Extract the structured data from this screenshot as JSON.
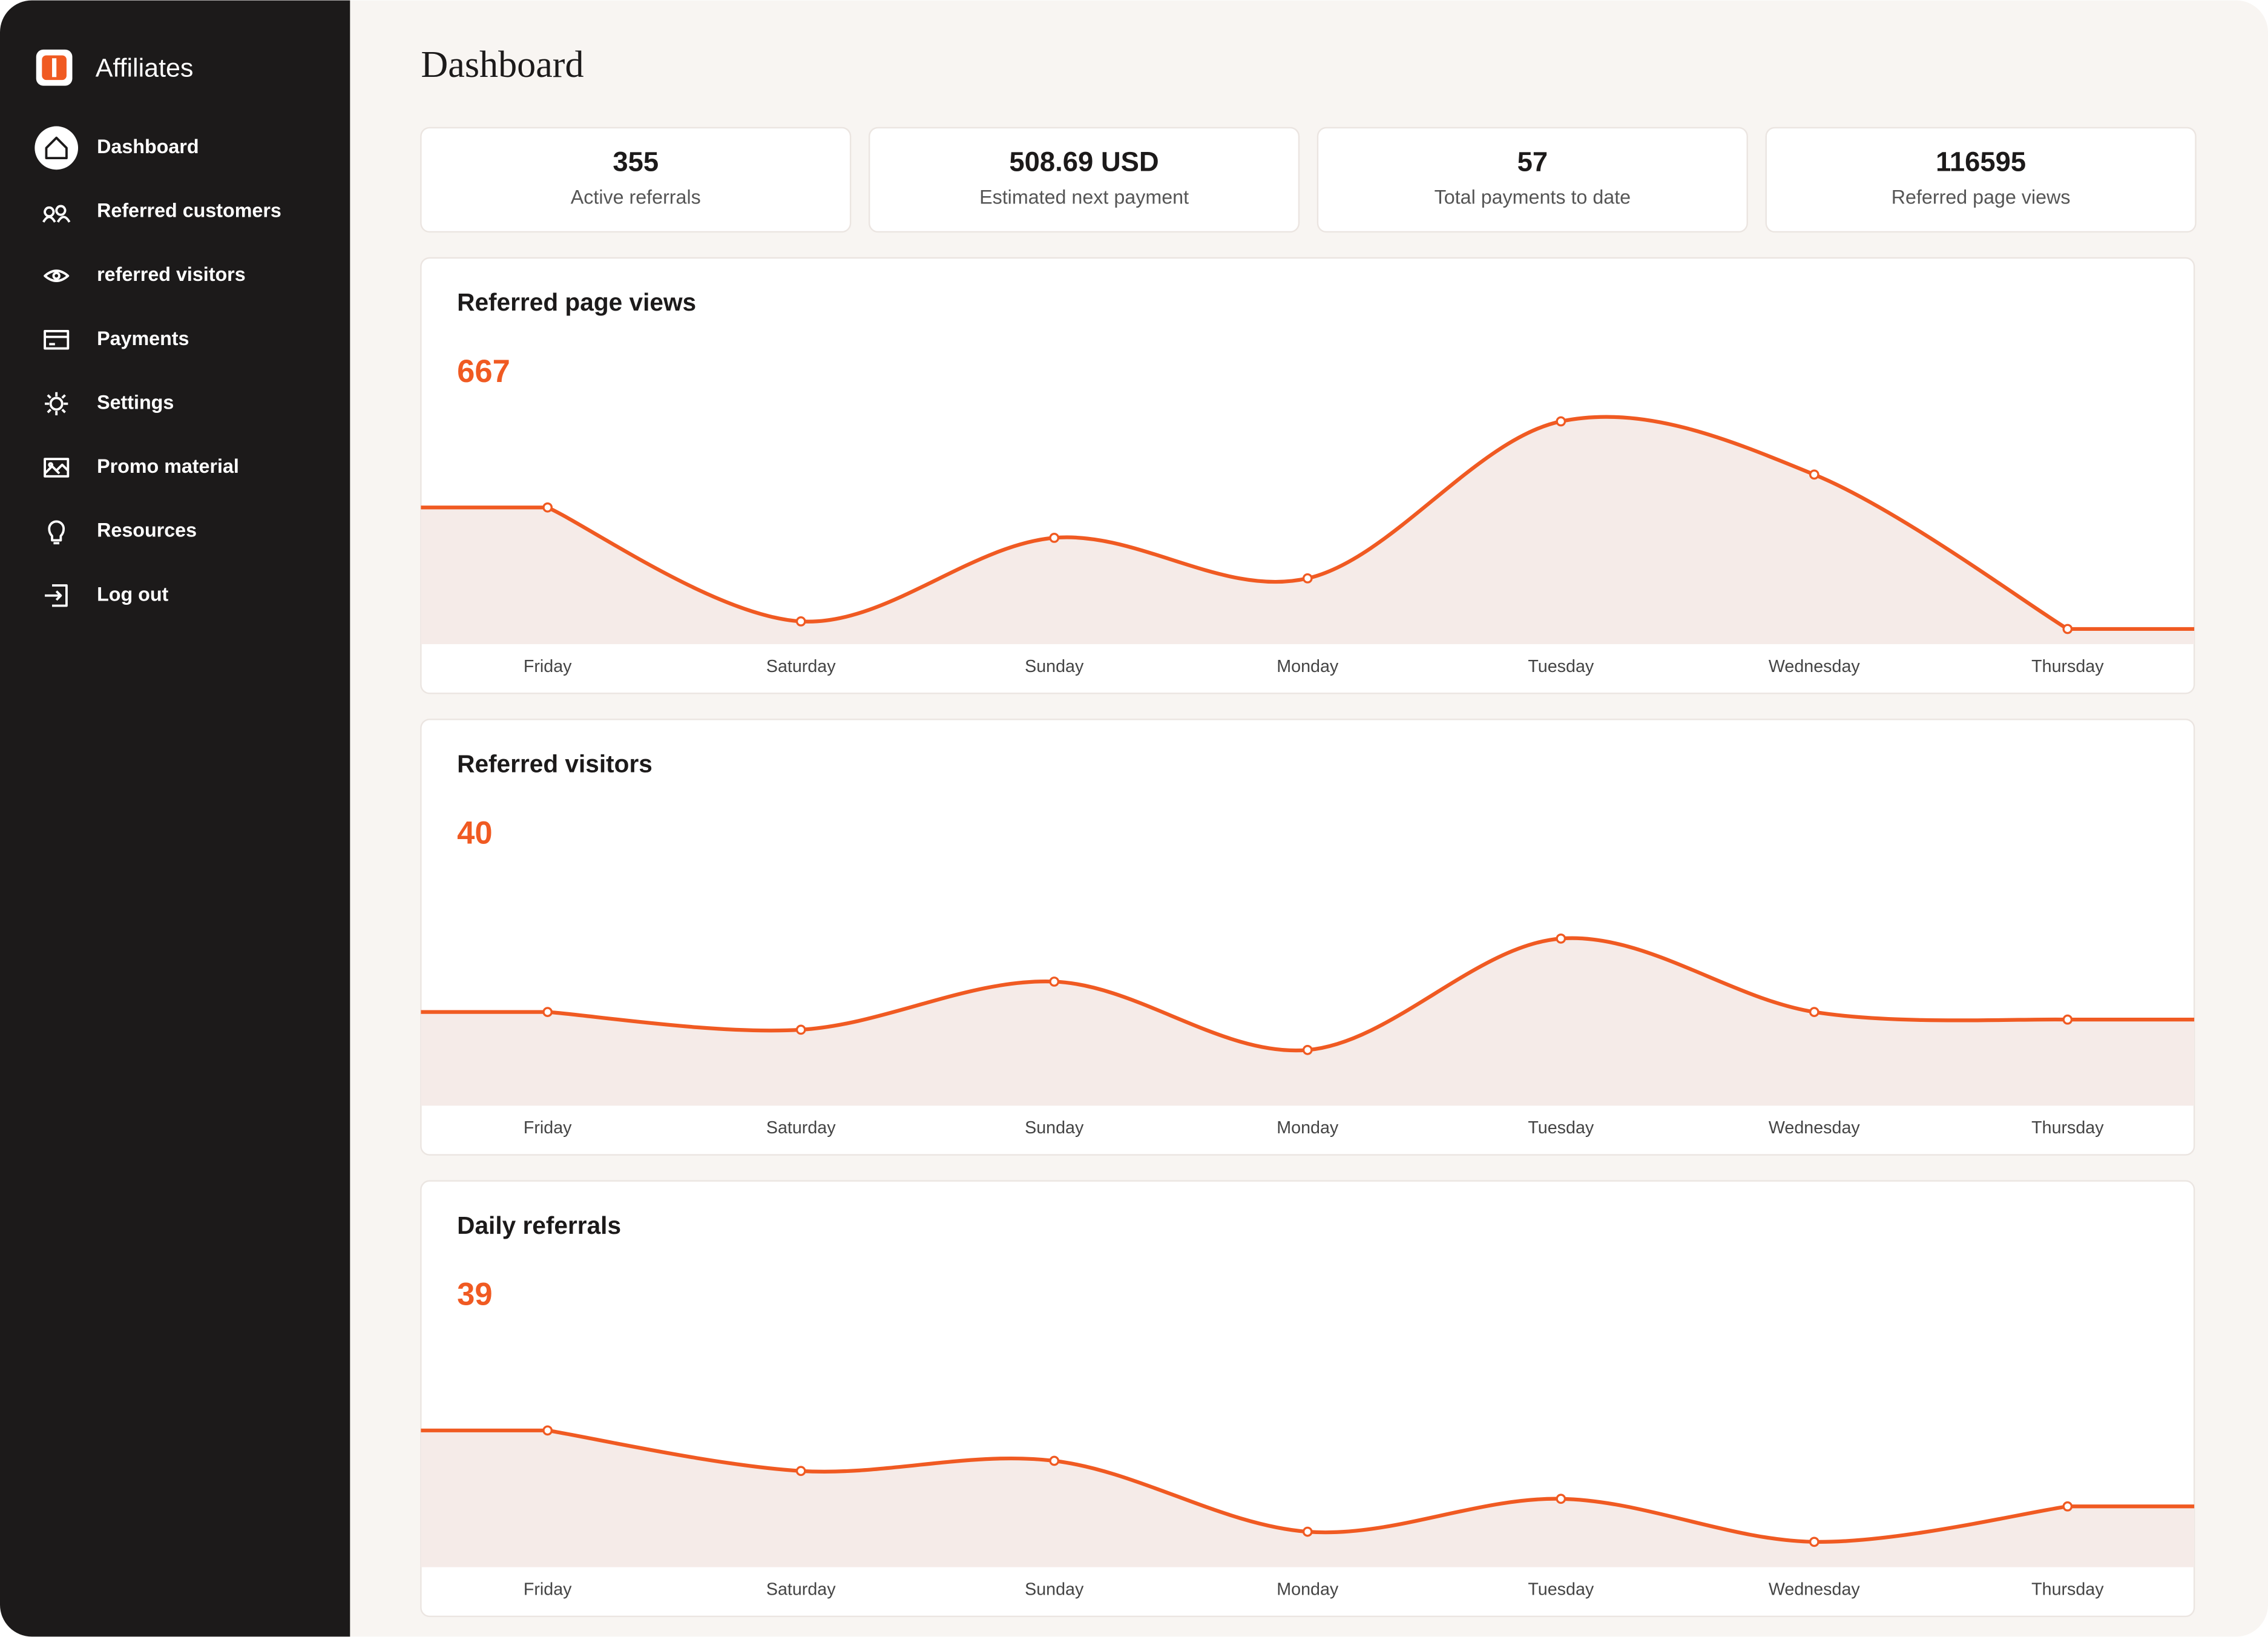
{
  "sidebar": {
    "brand": "Affiliates",
    "nav": [
      "Dashboard",
      "Referred customers",
      "referred visitors",
      "Payments",
      "Settings",
      "Promo material",
      "Resources",
      "Log out"
    ]
  },
  "header": {
    "title": "Dashboard"
  },
  "stats": [
    {
      "value": 355,
      "label": "Active referrals"
    },
    {
      "value": "508.69 USD",
      "label": "Estimated next payment"
    },
    {
      "value": 57,
      "label": "Total payments to date"
    },
    {
      "value": 116595,
      "label": "Referred page views"
    }
  ],
  "chart_data": [
    {
      "type": "area",
      "title": "Referred page views",
      "total": 667,
      "categories": [
        "Friday",
        "Saturday",
        "Sunday",
        "Monday",
        "Tuesday",
        "Wednesday",
        "Thursday"
      ],
      "values": [
        54,
        9,
        42,
        26,
        88,
        67,
        6
      ],
      "color": "#f05a22",
      "fill": "#f5ebe8",
      "ylim": [
        0,
        100
      ]
    },
    {
      "type": "area",
      "title": "Referred visitors",
      "total": 40,
      "categories": [
        "Friday",
        "Saturday",
        "Sunday",
        "Monday",
        "Tuesday",
        "Wednesday",
        "Thursday"
      ],
      "values": [
        37,
        30,
        49,
        22,
        66,
        37,
        34
      ],
      "color": "#f05a22",
      "fill": "#f5ebe8",
      "ylim": [
        0,
        100
      ]
    },
    {
      "type": "area",
      "title": "Daily referrals",
      "total": 39,
      "categories": [
        "Friday",
        "Saturday",
        "Sunday",
        "Monday",
        "Tuesday",
        "Wednesday",
        "Thursday"
      ],
      "values": [
        54,
        38,
        42,
        14,
        27,
        10,
        24
      ],
      "color": "#f05a22",
      "fill": "#f5ebe8",
      "ylim": [
        0,
        100
      ]
    }
  ]
}
